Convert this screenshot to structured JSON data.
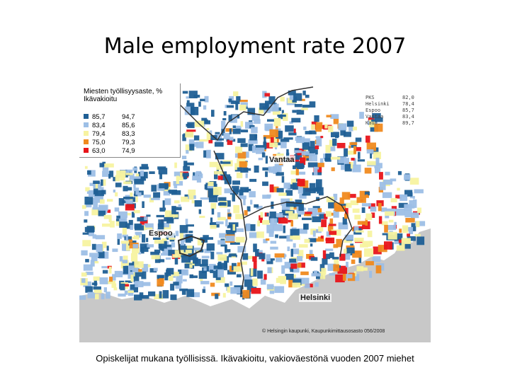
{
  "title": "Male employment rate 2007",
  "caption": "Opiskelijat mukana työllisissä. Ikävakioitu, vakioväestönä vuoden 2007 miehet",
  "map": {
    "legend": {
      "title_line1": "Miesten työllisyysaste, %",
      "title_line2": "Ikävakioitu",
      "classes": [
        {
          "min": "85,7",
          "max": "94,7",
          "color": "#1f5f95"
        },
        {
          "min": "83,4",
          "max": "85,6",
          "color": "#9dbfe6"
        },
        {
          "min": "79,4",
          "max": "83,3",
          "color": "#f7f3a0"
        },
        {
          "min": "75,0",
          "max": "79,3",
          "color": "#f08a1f"
        },
        {
          "min": "63,0",
          "max": "74,9",
          "color": "#e8141a"
        }
      ]
    },
    "stats": [
      {
        "name": "PKS",
        "value": "82,0"
      },
      {
        "name": "Helsinki",
        "value": "78,4"
      },
      {
        "name": "Espoo",
        "value": "85,7"
      },
      {
        "name": "Vantaa",
        "value": "83,4"
      },
      {
        "name": "Kaun.",
        "value": "89,7"
      }
    ],
    "labels": {
      "vantaa": "Vantaa",
      "espoo": "Espoo",
      "helsinki": "Helsinki"
    },
    "copyright": "© Helsingin kaupunki, Kaupunkimittausosasto 056/2008",
    "colors": {
      "sea": "#c8c8c8",
      "land": "#ffffff",
      "boundary": "#333333"
    }
  }
}
